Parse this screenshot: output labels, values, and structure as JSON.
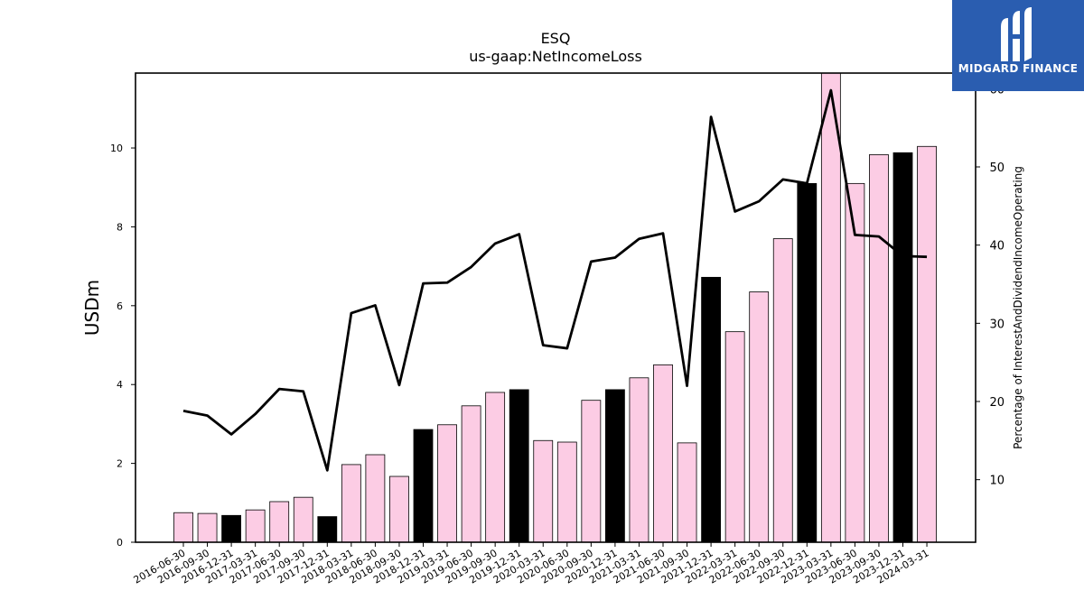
{
  "chart_data": {
    "type": "bar",
    "title": "ESQ",
    "subtitle": "us-gaap:NetIncomeLoss",
    "ylabel": "USDm",
    "y2label": "Percentage of InterestAndDividendIncomeOperating",
    "ylim": [
      0,
      11.9
    ],
    "y2lim": [
      2.0,
      62.0
    ],
    "yticks": [
      0,
      2,
      4,
      6,
      8,
      10
    ],
    "y2ticks": [
      10,
      20,
      30,
      40,
      50,
      60
    ],
    "categories": [
      "2016-06-30",
      "2016-09-30",
      "2016-12-31",
      "2017-03-31",
      "2017-06-30",
      "2017-09-30",
      "2017-12-31",
      "2018-03-31",
      "2018-06-30",
      "2018-09-30",
      "2018-12-31",
      "2019-03-31",
      "2019-06-30",
      "2019-09-30",
      "2019-12-31",
      "2020-03-31",
      "2020-06-30",
      "2020-09-30",
      "2020-12-31",
      "2021-03-31",
      "2021-06-30",
      "2021-09-30",
      "2021-12-31",
      "2022-03-31",
      "2022-06-30",
      "2022-09-30",
      "2022-12-31",
      "2023-03-31",
      "2023-06-30",
      "2023-09-30",
      "2023-12-31",
      "2024-03-31"
    ],
    "series": [
      {
        "type": "bar",
        "values": [
          0.75,
          0.73,
          0.68,
          0.82,
          1.03,
          1.14,
          0.65,
          1.97,
          2.22,
          1.67,
          2.86,
          2.98,
          3.46,
          3.8,
          3.87,
          2.58,
          2.54,
          3.6,
          3.87,
          4.17,
          4.5,
          2.52,
          6.72,
          5.34,
          6.35,
          7.7,
          9.1,
          12.0,
          9.1,
          9.83,
          9.88,
          10.04
        ],
        "highlight": [
          false,
          false,
          true,
          false,
          false,
          false,
          true,
          false,
          false,
          false,
          true,
          false,
          false,
          false,
          true,
          false,
          false,
          false,
          true,
          false,
          false,
          false,
          true,
          false,
          false,
          false,
          true,
          false,
          false,
          false,
          true,
          false
        ]
      },
      {
        "type": "line",
        "axis": "secondary",
        "values": [
          18.8,
          18.2,
          15.8,
          18.4,
          21.6,
          21.3,
          11.2,
          31.3,
          32.3,
          22.1,
          35.1,
          35.2,
          37.2,
          40.2,
          41.4,
          27.2,
          26.8,
          37.9,
          38.4,
          40.8,
          41.5,
          22.0,
          56.4,
          44.3,
          45.6,
          48.4,
          47.9,
          59.8,
          41.3,
          41.1,
          38.6,
          38.5
        ]
      }
    ],
    "colors": {
      "bar": "#fccce4",
      "bar_highlight": "#000000",
      "line": "#000000"
    }
  },
  "logo": {
    "text": "MIDGARD FINANCE",
    "color": "#2a5db0"
  }
}
